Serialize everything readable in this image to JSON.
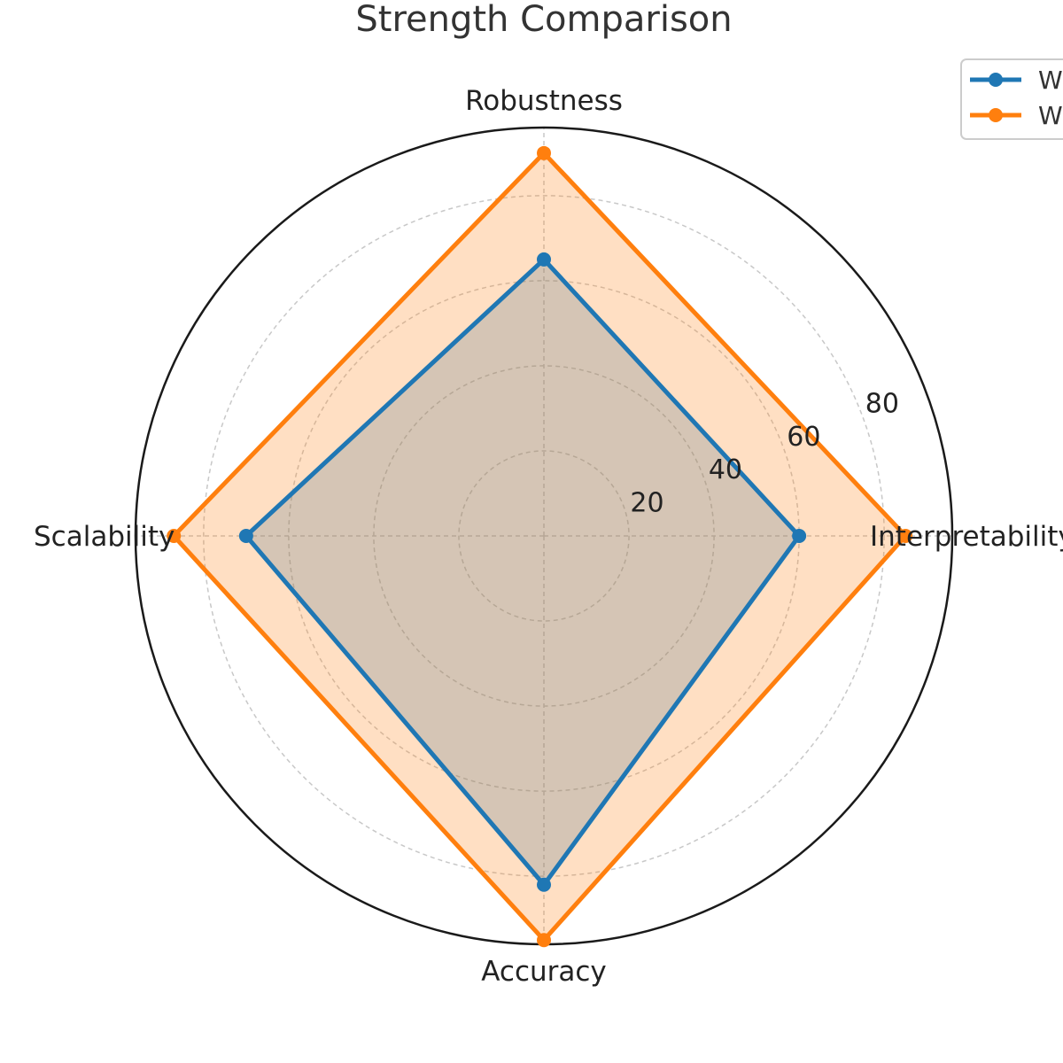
{
  "chart_data": {
    "type": "radar",
    "title": "Strength Comparison",
    "axes": [
      "Robustness",
      "Interpretability",
      "Accuracy",
      "Scalability"
    ],
    "rlim": [
      0,
      96
    ],
    "rticks": [
      20,
      40,
      60,
      80
    ],
    "grid": true,
    "legend_position": "top-right",
    "series": [
      {
        "name": "W",
        "color": "#1f77b4",
        "values": [
          65,
          60,
          82,
          70
        ]
      },
      {
        "name": "W",
        "color": "#ff7f0e",
        "values": [
          90,
          85,
          95,
          87
        ]
      }
    ]
  }
}
